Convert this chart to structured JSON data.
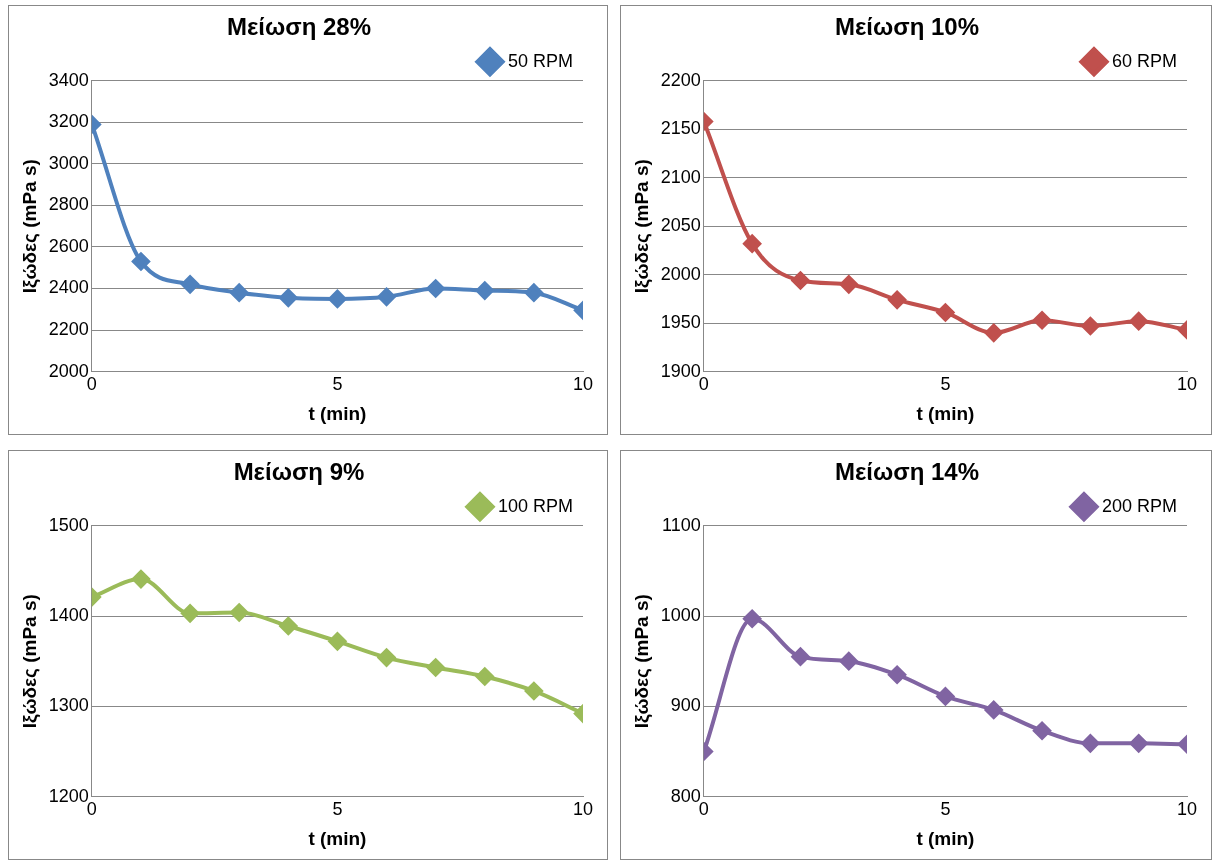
{
  "chart_data": [
    {
      "type": "line",
      "title": "Μείωση 28%",
      "xlabel": "t (min)",
      "ylabel": "Ιξώδες (mPa s)",
      "x": [
        0,
        1,
        2,
        3,
        4,
        5,
        6,
        7,
        8,
        9,
        10
      ],
      "series": [
        {
          "name": "50 RPM",
          "color": "#4f81bd",
          "values": [
            3190,
            2530,
            2420,
            2380,
            2355,
            2350,
            2360,
            2400,
            2390,
            2380,
            2295
          ]
        }
      ],
      "xlim": [
        0,
        10
      ],
      "xticks": [
        0,
        5,
        10
      ],
      "ylim": [
        2000,
        3400
      ],
      "yticks": [
        2000,
        2200,
        2400,
        2600,
        2800,
        3000,
        3200,
        3400
      ],
      "grid": "y",
      "legend": "top right",
      "marker": "diamond"
    },
    {
      "type": "line",
      "title": "Μείωση 10%",
      "xlabel": "t (min)",
      "ylabel": "Ιξώδες (mPa s)",
      "x": [
        0,
        1,
        2,
        3,
        4,
        5,
        6,
        7,
        8,
        9,
        10
      ],
      "series": [
        {
          "name": "60 RPM",
          "color": "#c0504d",
          "values": [
            2158,
            2032,
            1994,
            1990,
            1974,
            1961,
            1940,
            1953,
            1947,
            1952,
            1943
          ]
        }
      ],
      "xlim": [
        0,
        10
      ],
      "xticks": [
        0,
        5,
        10
      ],
      "ylim": [
        1900,
        2200
      ],
      "yticks": [
        1900,
        1950,
        2000,
        2050,
        2100,
        2150,
        2200
      ],
      "grid": "y",
      "legend": "top right",
      "marker": "diamond"
    },
    {
      "type": "line",
      "title": "Μείωση 9%",
      "xlabel": "t (min)",
      "ylabel": "Ιξώδες (mPa s)",
      "x": [
        0,
        1,
        2,
        3,
        4,
        5,
        6,
        7,
        8,
        9,
        10
      ],
      "series": [
        {
          "name": "100 RPM",
          "color": "#9bbb59",
          "values": [
            1421,
            1441,
            1403,
            1404,
            1389,
            1372,
            1354,
            1343,
            1333,
            1317,
            1292
          ]
        }
      ],
      "xlim": [
        0,
        10
      ],
      "xticks": [
        0,
        5,
        10
      ],
      "ylim": [
        1200,
        1500
      ],
      "yticks": [
        1200,
        1300,
        1400,
        1500
      ],
      "grid": "y",
      "legend": "top right",
      "marker": "diamond"
    },
    {
      "type": "line",
      "title": "Μείωση 14%",
      "xlabel": "t (min)",
      "ylabel": "Ιξώδες (mPa s)",
      "x": [
        0,
        1,
        2,
        3,
        4,
        5,
        6,
        7,
        8,
        9,
        10
      ],
      "series": [
        {
          "name": "200 RPM",
          "color": "#8064a2",
          "values": [
            850,
            997,
            955,
            950,
            935,
            911,
            896,
            873,
            859,
            859,
            858
          ]
        }
      ],
      "xlim": [
        0,
        10
      ],
      "xticks": [
        0,
        5,
        10
      ],
      "ylim": [
        800,
        1100
      ],
      "yticks": [
        800,
        900,
        1000,
        1100
      ],
      "grid": "y",
      "legend": "top right",
      "marker": "diamond"
    }
  ]
}
